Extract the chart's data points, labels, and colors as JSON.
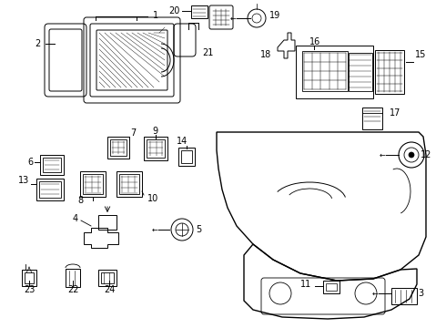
{
  "bg_color": "#ffffff",
  "line_color": "#000000",
  "fig_width": 4.9,
  "fig_height": 3.6,
  "dpi": 100,
  "lw": 0.7
}
